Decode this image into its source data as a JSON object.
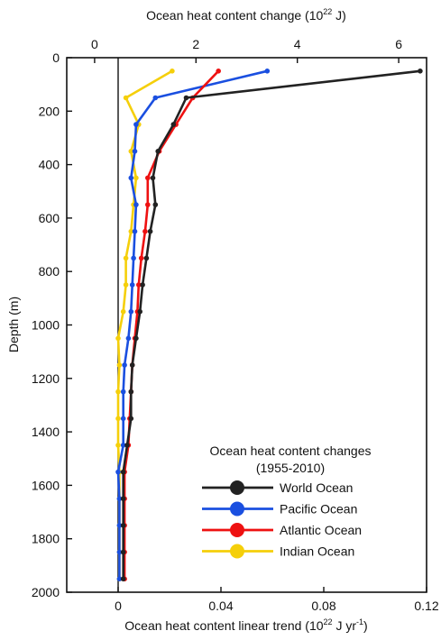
{
  "chart_data": {
    "type": "line",
    "orientation": "vertical-profile",
    "top_axis": {
      "label_main": "Ocean heat content change (10",
      "label_sup": "22",
      "label_end": " J)",
      "range": [
        -0.55,
        6.55
      ],
      "ticks": [
        0,
        2,
        4,
        6
      ],
      "tick_labels": [
        "0",
        "2",
        "4",
        "6"
      ]
    },
    "bottom_axis": {
      "label_main": "Ocean heat content linear trend (10",
      "label_sup1": "22",
      "label_mid": " J yr",
      "label_sup2": "-1",
      "label_end": ")",
      "range": [
        -0.02,
        0.12
      ],
      "ticks": [
        0,
        0.04,
        0.08,
        0.12
      ],
      "tick_labels": [
        "0",
        "0.04",
        "0.08",
        "0.12"
      ]
    },
    "y_axis": {
      "label": "Depth (m)",
      "range": [
        0,
        2000
      ],
      "inverted": true,
      "ticks": [
        0,
        200,
        400,
        600,
        800,
        1000,
        1200,
        1400,
        1600,
        1800,
        2000
      ],
      "tick_labels": [
        "0",
        "200",
        "400",
        "600",
        "800",
        "1000",
        "1200",
        "1400",
        "1600",
        "1800",
        "2000"
      ]
    },
    "grid": false,
    "zero_line": true,
    "legend": {
      "title_line1": "Ocean heat content changes",
      "title_line2": "(1955-2010)",
      "placement": "bottom-right"
    },
    "depths": [
      50,
      150,
      250,
      350,
      450,
      550,
      650,
      750,
      850,
      950,
      1050,
      1150,
      1250,
      1350,
      1450,
      1550,
      1650,
      1750,
      1850,
      1950
    ],
    "series": [
      {
        "name": "World Ocean",
        "color": "#222222",
        "trend": [
          0.1175,
          0.0265,
          0.0215,
          0.0155,
          0.0135,
          0.0145,
          0.0125,
          0.011,
          0.0095,
          0.0085,
          0.007,
          0.0055,
          0.005,
          0.005,
          0.0035,
          0.002,
          0.002,
          0.002,
          0.002,
          0.002
        ]
      },
      {
        "name": "Pacific Ocean",
        "color": "#1a4fe0",
        "trend": [
          0.058,
          0.0145,
          0.007,
          0.0065,
          0.005,
          0.007,
          0.0065,
          0.006,
          0.0055,
          0.005,
          0.004,
          0.0025,
          0.002,
          0.002,
          0.002,
          0.0,
          0.0005,
          0.0005,
          0.0005,
          0.0005
        ]
      },
      {
        "name": "Atlantic Ocean",
        "color": "#ee1111",
        "trend": [
          0.039,
          0.029,
          0.0225,
          0.016,
          0.0115,
          0.0115,
          0.0105,
          0.009,
          0.008,
          0.0075,
          0.0065,
          0.0055,
          0.005,
          0.0045,
          0.004,
          0.0025,
          0.0025,
          0.0025,
          0.0025,
          0.0025
        ]
      },
      {
        "name": "Indian Ocean",
        "color": "#f5cf0a",
        "trend": [
          0.021,
          0.003,
          0.008,
          0.005,
          0.007,
          0.006,
          0.005,
          0.003,
          0.003,
          0.002,
          0.0,
          0.0005,
          0.0,
          0.0,
          0.0,
          0.0005,
          0.0005,
          0.0005,
          0.0005,
          0.0005
        ]
      }
    ]
  }
}
